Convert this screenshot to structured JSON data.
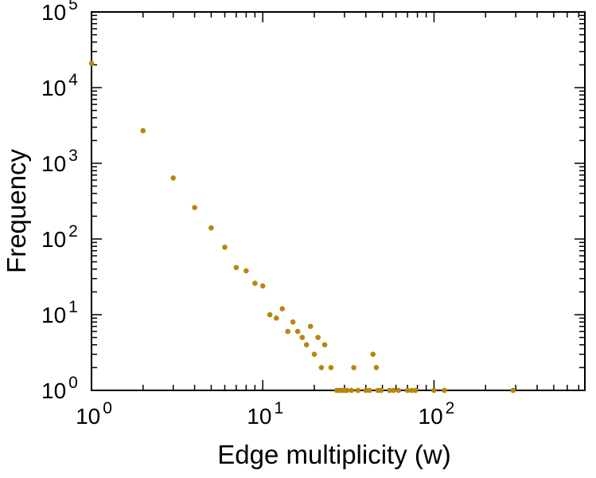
{
  "figure": {
    "background": "#ffffff",
    "frame_color": "#000000"
  },
  "chart_data": {
    "type": "scatter",
    "title": "",
    "xlabel": "Edge multiplicity (w)",
    "ylabel": "Frequency",
    "x_scale": "log",
    "y_scale": "log",
    "xlim": [
      1,
      760
    ],
    "ylim": [
      1,
      100000
    ],
    "x_tick_exponents": [
      0,
      1,
      2
    ],
    "y_tick_exponents": [
      0,
      1,
      2,
      3,
      4,
      5
    ],
    "grid": false,
    "legend": "none",
    "marker_color": "#b8860b",
    "marker_shape": "circle",
    "points": [
      [
        1,
        21000
      ],
      [
        2,
        2700
      ],
      [
        3,
        640
      ],
      [
        4,
        260
      ],
      [
        5,
        140
      ],
      [
        6,
        78
      ],
      [
        7,
        42
      ],
      [
        8,
        38
      ],
      [
        9,
        26
      ],
      [
        10,
        24
      ],
      [
        11,
        10
      ],
      [
        12,
        9
      ],
      [
        13,
        12
      ],
      [
        14,
        6
      ],
      [
        15,
        8
      ],
      [
        16,
        6
      ],
      [
        17,
        5
      ],
      [
        18,
        4
      ],
      [
        19,
        7
      ],
      [
        20,
        3
      ],
      [
        21,
        5
      ],
      [
        22,
        2
      ],
      [
        23,
        4
      ],
      [
        25,
        2
      ],
      [
        27,
        1
      ],
      [
        28,
        1
      ],
      [
        29,
        1
      ],
      [
        30,
        1
      ],
      [
        31,
        1
      ],
      [
        33,
        1
      ],
      [
        34,
        2
      ],
      [
        36,
        1
      ],
      [
        40,
        1
      ],
      [
        42,
        1
      ],
      [
        44,
        3
      ],
      [
        46,
        2
      ],
      [
        47,
        1
      ],
      [
        49,
        1
      ],
      [
        55,
        1
      ],
      [
        58,
        1
      ],
      [
        62,
        1
      ],
      [
        70,
        1
      ],
      [
        74,
        1
      ],
      [
        78,
        1
      ],
      [
        100,
        1
      ],
      [
        115,
        1
      ],
      [
        290,
        1
      ]
    ]
  }
}
